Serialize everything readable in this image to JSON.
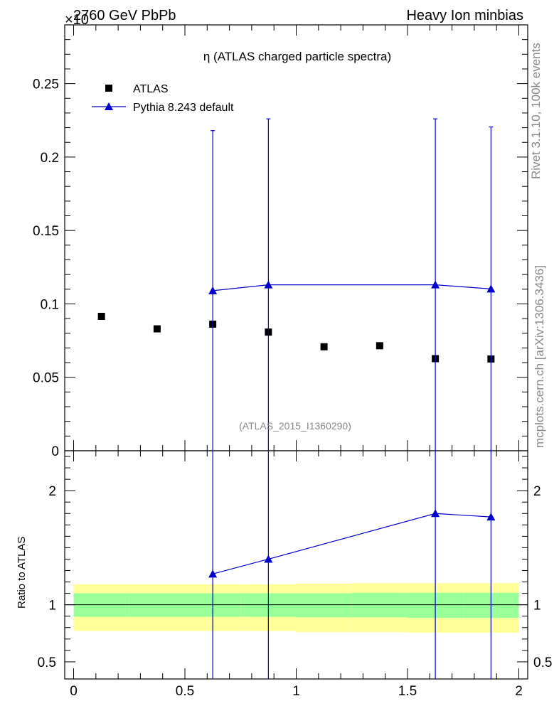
{
  "header": {
    "left": "2760 GeV PbPb",
    "right": "Heavy Ion minbias",
    "exponent": "×10"
  },
  "side_labels": {
    "rivet": "Rivet 3.1.10,  100k events",
    "mcplots": "mcplots.cern.ch [arXiv:1306.3436]"
  },
  "chart_data": [
    {
      "type": "scatter",
      "title": "η (ATLAS charged particle spectra)",
      "watermark": "(ATLAS_2015_I1360290)",
      "xlim": [
        -0.04,
        2.04
      ],
      "ylim": [
        0,
        0.29
      ],
      "y_exponent_label": "×10",
      "yticks": [
        0.05,
        0.1,
        0.15,
        0.2,
        0.25
      ],
      "yticklabels": [
        "0.05",
        "0.1",
        "0.15",
        "0.2",
        "0.25"
      ],
      "bottom_tick_label": "0",
      "legend_position": "top-left",
      "series": [
        {
          "name": "ATLAS",
          "marker": "square",
          "color": "#000000",
          "x": [
            0.125,
            0.375,
            0.625,
            0.875,
            1.125,
            1.375,
            1.625,
            1.875
          ],
          "y": [
            0.0915,
            0.083,
            0.0862,
            0.0808,
            0.0708,
            0.0715,
            0.0627,
            0.0625
          ]
        },
        {
          "name": "Pythia 8.243 default",
          "marker": "triangle",
          "line": true,
          "color": "#0000cc",
          "x": [
            0.625,
            0.875,
            1.625,
            1.875
          ],
          "y": [
            0.109,
            0.113,
            0.113,
            0.1102
          ],
          "yerr_high": [
            0.218,
            0.226,
            0.226,
            0.2205
          ]
        }
      ]
    },
    {
      "type": "line",
      "ylabel": "Ratio to ATLAS",
      "xlim": [
        -0.04,
        2.04
      ],
      "ylim": [
        0.35,
        2.35
      ],
      "yticks": [
        0.5,
        1,
        2
      ],
      "yticklabels": [
        "0.5",
        "1",
        "2"
      ],
      "xticks": [
        0,
        0.5,
        1,
        1.5,
        2
      ],
      "xticklabels": [
        "0",
        "0.5",
        "1",
        "1.5",
        "2"
      ],
      "reference_line": 1,
      "bands": {
        "bins": [
          [
            0,
            0.25
          ],
          [
            0.25,
            0.5
          ],
          [
            0.5,
            0.75
          ],
          [
            0.75,
            1.0
          ],
          [
            1.0,
            1.25
          ],
          [
            1.25,
            1.5
          ],
          [
            1.5,
            1.75
          ],
          [
            1.75,
            2.0
          ]
        ],
        "yellow": [
          [
            0.77,
            1.18
          ],
          [
            0.77,
            1.18
          ],
          [
            0.77,
            1.18
          ],
          [
            0.77,
            1.18
          ],
          [
            0.76,
            1.185
          ],
          [
            0.76,
            1.19
          ],
          [
            0.755,
            1.19
          ],
          [
            0.755,
            1.19
          ]
        ],
        "green": [
          [
            0.895,
            1.1
          ],
          [
            0.895,
            1.1
          ],
          [
            0.895,
            1.1
          ],
          [
            0.895,
            1.1
          ],
          [
            0.89,
            1.1
          ],
          [
            0.89,
            1.105
          ],
          [
            0.885,
            1.105
          ],
          [
            0.885,
            1.105
          ]
        ],
        "yellow_color": "#ffff99",
        "green_color": "#99ff99"
      },
      "series": [
        {
          "name": "Pythia 8.243 default",
          "color": "#0000cc",
          "x": [
            0.625,
            0.875,
            1.625,
            1.875
          ],
          "y": [
            1.27,
            1.4,
            1.8,
            1.77
          ]
        }
      ]
    }
  ]
}
